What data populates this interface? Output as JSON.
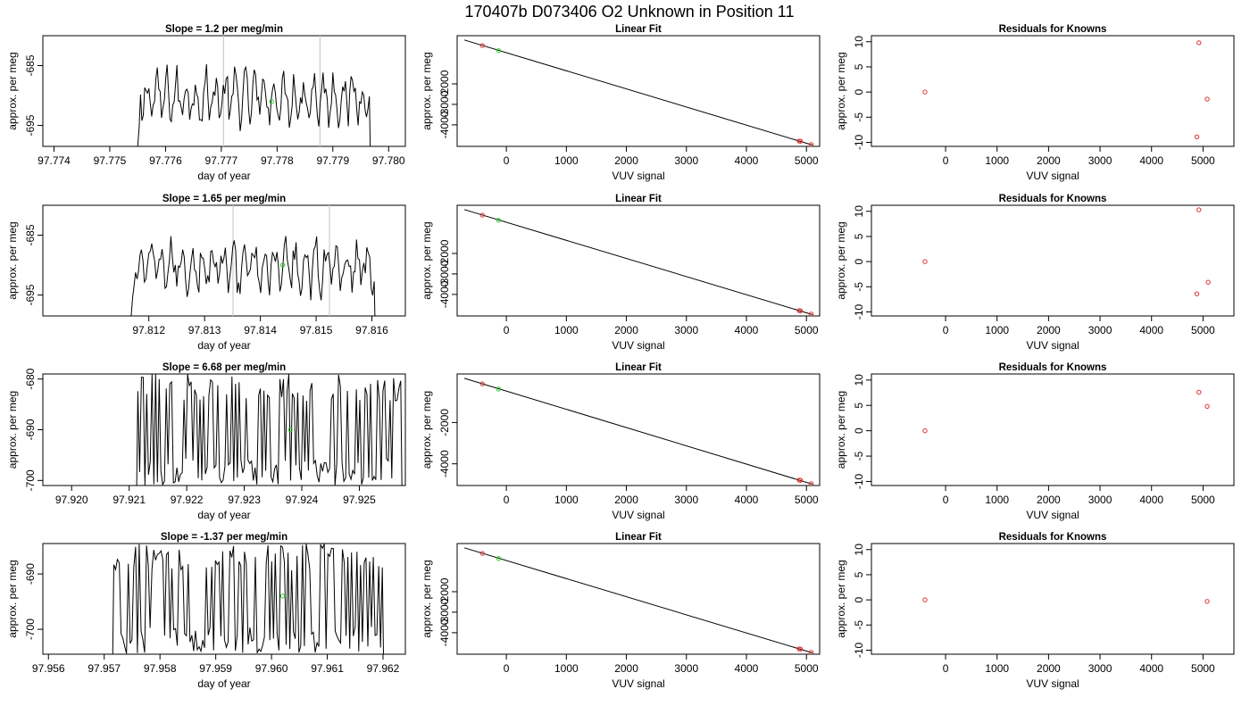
{
  "header": {
    "title": "170407b      D073406    O2 Unknown in Position  11"
  },
  "colors": {
    "known": "#e03030",
    "unknown": "#22cc22",
    "line": "#000000",
    "refline": "#cccccc"
  },
  "chart_data": [
    {
      "type": "line",
      "title": "Slope =  1.2  per meg/min",
      "xlabel": "day of year",
      "ylabel": "approx. per meg",
      "xlim": [
        97.7738,
        97.7803
      ],
      "ylim": [
        -698.5,
        -680
      ],
      "xticks": [
        97.774,
        97.775,
        97.776,
        97.777,
        97.778,
        97.779,
        97.78
      ],
      "xtick_labels": [
        "97.774",
        "97.775",
        "97.776",
        "97.777",
        "97.778",
        "97.779",
        "97.780"
      ],
      "yticks": [
        -685,
        -695
      ],
      "ytick_labels": [
        "-685",
        "-695"
      ],
      "vlines": [
        97.77704,
        97.77877
      ],
      "series_start": 97.77545,
      "series_end": 97.77973,
      "unknown_point": [
        97.7779,
        -691
      ],
      "trace_style": "smooth",
      "trace_low": -696,
      "trace_high": -684.5
    },
    {
      "type": "line",
      "title": "Slope =  1.65  per meg/min",
      "xlabel": "day of year",
      "ylabel": "approx. per meg",
      "xlim": [
        97.8101,
        97.8166
      ],
      "ylim": [
        -698.5,
        -680
      ],
      "xticks": [
        97.812,
        97.813,
        97.814,
        97.815,
        97.816
      ],
      "xtick_labels": [
        "97.812",
        "97.813",
        "97.814",
        "97.815",
        "97.816"
      ],
      "yticks": [
        -685,
        -695
      ],
      "ytick_labels": [
        "-685",
        "-695"
      ],
      "vlines": [
        97.81351,
        97.81524
      ],
      "series_start": 97.81163,
      "series_end": 97.81612,
      "unknown_point": [
        97.8144,
        -690
      ],
      "trace_style": "smooth",
      "trace_low": -696,
      "trace_high": -684.5
    },
    {
      "type": "line",
      "title": "Slope =  6.68  per meg/min",
      "xlabel": "day of year",
      "ylabel": "approx. per meg",
      "xlim": [
        97.9195,
        97.9258
      ],
      "ylim": [
        -701,
        -679
      ],
      "xticks": [
        97.92,
        97.921,
        97.922,
        97.923,
        97.924,
        97.925
      ],
      "xtick_labels": [
        "97.920",
        "97.921",
        "97.922",
        "97.923",
        "97.924",
        "97.925"
      ],
      "yticks": [
        -680,
        -690,
        -700
      ],
      "ytick_labels": [
        "-680",
        "-690",
        "-700"
      ],
      "vlines": [],
      "series_start": 97.92112,
      "series_end": 97.92575,
      "unknown_point": [
        97.9238,
        -690
      ],
      "trace_style": "noisy",
      "trace_low": -701,
      "trace_high": -679
    },
    {
      "type": "line",
      "title": "Slope =  -1.37  per meg/min",
      "xlabel": "day of year",
      "ylabel": "approx. per meg",
      "xlim": [
        97.9559,
        97.9624
      ],
      "ylim": [
        -704.5,
        -684.5
      ],
      "xticks": [
        97.956,
        97.957,
        97.958,
        97.959,
        97.96,
        97.961,
        97.962
      ],
      "xtick_labels": [
        "97.956",
        "97.957",
        "97.958",
        "97.959",
        "97.960",
        "97.961",
        "97.962"
      ],
      "yticks": [
        -690,
        -700
      ],
      "ytick_labels": [
        "-690",
        "-700"
      ],
      "vlines": [],
      "series_start": 97.95714,
      "series_end": 97.96202,
      "unknown_point": [
        97.9602,
        -694
      ],
      "trace_style": "noisy",
      "trace_low": -704.5,
      "trace_high": -684.5
    },
    {
      "type": "scatter",
      "title": "Linear Fit",
      "xlabel": "VUV signal",
      "ylabel": "approx. per meg",
      "xlim": [
        -820,
        5220
      ],
      "ylim": [
        -5050,
        350
      ],
      "xticks": [
        0,
        1000,
        2000,
        3000,
        4000,
        5000
      ],
      "xtick_labels": [
        "0",
        "1000",
        "2000",
        "3000",
        "4000",
        "5000"
      ],
      "yticks": [
        -2000,
        -3000,
        -4000
      ],
      "ytick_labels": [
        "-2000",
        "-3000",
        "-4000"
      ],
      "fit_line": [
        [
          -700,
          140
        ],
        [
          5100,
          -4985
        ]
      ],
      "knowns": [
        [
          -400,
          -130
        ],
        [
          4880,
          -4790
        ],
        [
          4900,
          -4800
        ],
        [
          5080,
          -4960
        ]
      ],
      "unknown": [
        [
          -130,
          -380
        ]
      ]
    },
    {
      "type": "scatter",
      "title": "Linear Fit",
      "xlabel": "VUV signal",
      "ylabel": "approx. per meg",
      "xlim": [
        -820,
        5220
      ],
      "ylim": [
        -5050,
        350
      ],
      "xticks": [
        0,
        1000,
        2000,
        3000,
        4000,
        5000
      ],
      "xtick_labels": [
        "0",
        "1000",
        "2000",
        "3000",
        "4000",
        "5000"
      ],
      "yticks": [
        -2000,
        -3000,
        -4000
      ],
      "ytick_labels": [
        "-2000",
        "-3000",
        "-4000"
      ],
      "fit_line": [
        [
          -700,
          140
        ],
        [
          5100,
          -4985
        ]
      ],
      "knowns": [
        [
          -400,
          -130
        ],
        [
          4880,
          -4790
        ],
        [
          4900,
          -4800
        ],
        [
          5080,
          -4960
        ]
      ],
      "unknown": [
        [
          -130,
          -380
        ]
      ]
    },
    {
      "type": "scatter",
      "title": "Linear Fit",
      "xlabel": "VUV signal",
      "ylabel": "approx. per meg",
      "xlim": [
        -820,
        5220
      ],
      "ylim": [
        -5050,
        350
      ],
      "xticks": [
        0,
        1000,
        2000,
        3000,
        4000,
        5000
      ],
      "xtick_labels": [
        "0",
        "1000",
        "2000",
        "3000",
        "4000",
        "5000"
      ],
      "yticks": [
        -2000,
        -4000
      ],
      "ytick_labels": [
        "-2000",
        "-4000"
      ],
      "fit_line": [
        [
          -700,
          140
        ],
        [
          5100,
          -4985
        ]
      ],
      "knowns": [
        [
          -400,
          -130
        ],
        [
          4880,
          -4790
        ],
        [
          4900,
          -4800
        ],
        [
          5080,
          -4960
        ]
      ],
      "unknown": [
        [
          -130,
          -380
        ]
      ]
    },
    {
      "type": "scatter",
      "title": "Linear Fit",
      "xlabel": "VUV signal",
      "ylabel": "approx. per meg",
      "xlim": [
        -820,
        5220
      ],
      "ylim": [
        -5050,
        350
      ],
      "xticks": [
        0,
        1000,
        2000,
        3000,
        4000,
        5000
      ],
      "xtick_labels": [
        "0",
        "1000",
        "2000",
        "3000",
        "4000",
        "5000"
      ],
      "yticks": [
        -2000,
        -3000,
        -4000
      ],
      "ytick_labels": [
        "-2000",
        "-3000",
        "-4000"
      ],
      "fit_line": [
        [
          -700,
          140
        ],
        [
          5100,
          -4985
        ]
      ],
      "knowns": [
        [
          -400,
          -130
        ],
        [
          4880,
          -4790
        ],
        [
          4900,
          -4800
        ],
        [
          5080,
          -4960
        ]
      ],
      "unknown": [
        [
          -130,
          -380
        ]
      ]
    },
    {
      "type": "scatter",
      "title": "Residuals for Knowns",
      "xlabel": "VUV signal",
      "ylabel": "approx. per meg",
      "xlim": [
        -1440,
        5600
      ],
      "ylim": [
        -10.8,
        11.2
      ],
      "xticks": [
        0,
        1000,
        2000,
        3000,
        4000,
        5000
      ],
      "xtick_labels": [
        "0",
        "1000",
        "2000",
        "3000",
        "4000",
        "5000"
      ],
      "yticks": [
        10,
        5,
        0,
        -5,
        -10
      ],
      "ytick_labels": [
        "10",
        "5",
        "0",
        "-5",
        "-10"
      ],
      "points": [
        [
          -400,
          0
        ],
        [
          4920,
          9.8
        ],
        [
          5080,
          -1.4
        ],
        [
          4880,
          -8.9
        ]
      ]
    },
    {
      "type": "scatter",
      "title": "Residuals for Knowns",
      "xlabel": "VUV signal",
      "ylabel": "approx. per meg",
      "xlim": [
        -1440,
        5600
      ],
      "ylim": [
        -10.8,
        11.2
      ],
      "xticks": [
        0,
        1000,
        2000,
        3000,
        4000,
        5000
      ],
      "xtick_labels": [
        "0",
        "1000",
        "2000",
        "3000",
        "4000",
        "5000"
      ],
      "yticks": [
        10,
        5,
        0,
        -5,
        -10
      ],
      "ytick_labels": [
        "10",
        "5",
        "0",
        "-5",
        "-10"
      ],
      "points": [
        [
          -400,
          0
        ],
        [
          4920,
          10.3
        ],
        [
          5100,
          -4.1
        ],
        [
          4880,
          -6.4
        ]
      ]
    },
    {
      "type": "scatter",
      "title": "Residuals for Knowns",
      "xlabel": "VUV signal",
      "ylabel": "approx. per meg",
      "xlim": [
        -1440,
        5600
      ],
      "ylim": [
        -10.8,
        11.2
      ],
      "xticks": [
        0,
        1000,
        2000,
        3000,
        4000,
        5000
      ],
      "xtick_labels": [
        "0",
        "1000",
        "2000",
        "3000",
        "4000",
        "5000"
      ],
      "yticks": [
        10,
        5,
        0,
        -5,
        -10
      ],
      "ytick_labels": [
        "10",
        "5",
        "0",
        "-5",
        "-10"
      ],
      "points": [
        [
          -400,
          0
        ],
        [
          4920,
          7.6
        ],
        [
          5080,
          4.8
        ]
      ]
    },
    {
      "type": "scatter",
      "title": "Residuals for Knowns",
      "xlabel": "VUV signal",
      "ylabel": "approx. per meg",
      "xlim": [
        -1440,
        5600
      ],
      "ylim": [
        -10.8,
        11.2
      ],
      "xticks": [
        0,
        1000,
        2000,
        3000,
        4000,
        5000
      ],
      "xtick_labels": [
        "0",
        "1000",
        "2000",
        "3000",
        "4000",
        "5000"
      ],
      "yticks": [
        10,
        5,
        0,
        -5,
        -10
      ],
      "ytick_labels": [
        "10",
        "5",
        "0",
        "-5",
        "-10"
      ],
      "points": [
        [
          -400,
          0
        ],
        [
          5080,
          -0.3
        ]
      ]
    }
  ]
}
